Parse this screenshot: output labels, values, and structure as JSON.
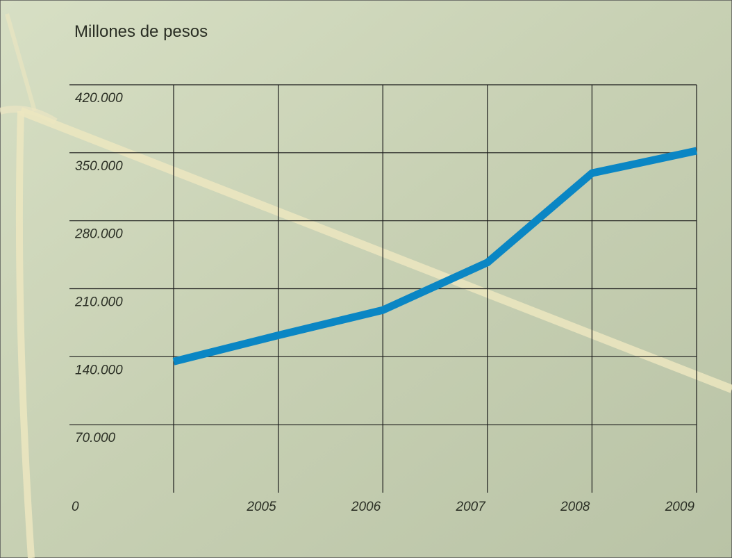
{
  "chart_data": {
    "type": "line",
    "title": "Millones de pesos",
    "xlabel": "",
    "ylabel": "",
    "origin_label": "0",
    "x": [
      "2005",
      "2006",
      "2007",
      "2008",
      "2009"
    ],
    "y_ticks": [
      {
        "value": 70000,
        "label": "70.000"
      },
      {
        "value": 140000,
        "label": "140.000"
      },
      {
        "value": 210000,
        "label": "210.000"
      },
      {
        "value": 280000,
        "label": "280.000"
      },
      {
        "value": 350000,
        "label": "350.000"
      },
      {
        "value": 420000,
        "label": "420.000"
      }
    ],
    "ylim": [
      0,
      420000
    ],
    "grid": true,
    "series": [
      {
        "color": "#0a86c4",
        "points": [
          {
            "x": "2004",
            "y": 135000
          },
          {
            "x": "2005",
            "y": 162000
          },
          {
            "x": "2006",
            "y": 188000
          },
          {
            "x": "2007",
            "y": 237000
          },
          {
            "x": "2008",
            "y": 329000
          },
          {
            "x": "2009",
            "y": 352000
          }
        ]
      }
    ]
  }
}
